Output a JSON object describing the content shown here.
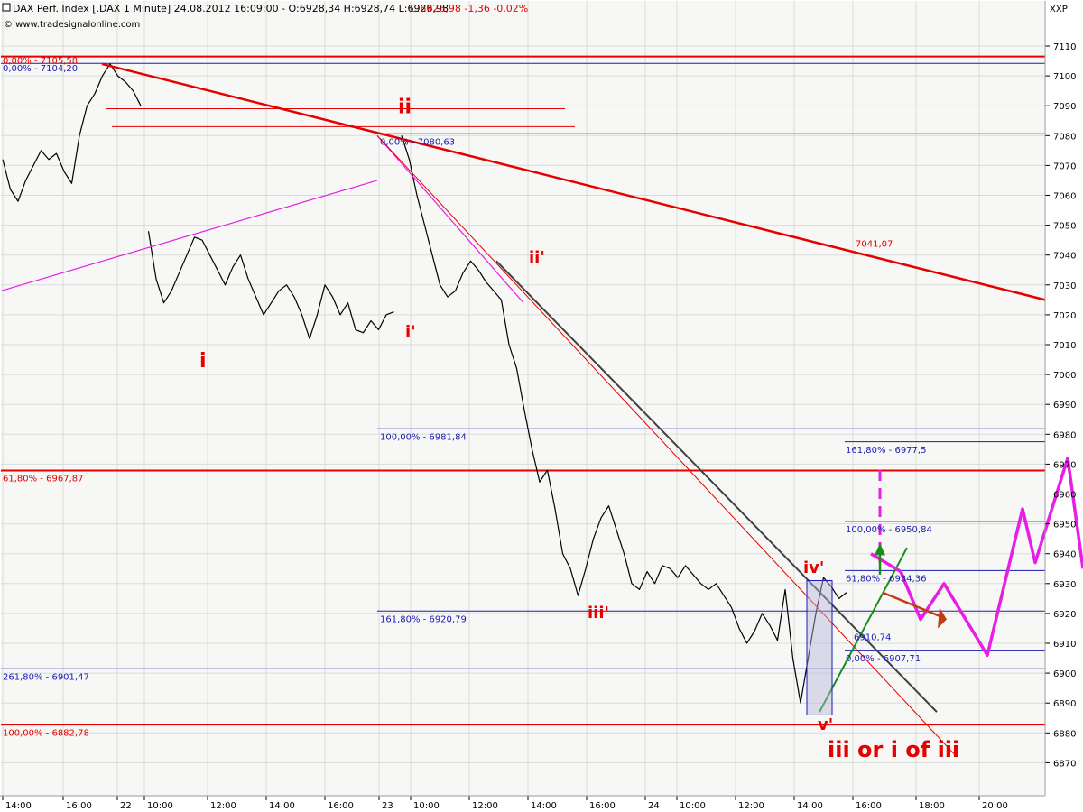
{
  "header": {
    "title": "DAX Perf. Index [.DAX  1 Minute] 24.08.2012 16:09:00 - O:6928,34 H:6928,74 L:6926,98",
    "close_text": "C:6926,98 -1,36 -0,02%",
    "source": "© www.tradesignalonline.com",
    "corner": "XXP"
  },
  "colors": {
    "background": "#f7f8f5",
    "grid": "#d8dcd8",
    "price": "#000000",
    "red": "#e60000",
    "blue": "#1a1ab4",
    "magenta": "#e61ee6",
    "grey": "#404040",
    "green": "#1a8c1a"
  },
  "chart_data": {
    "type": "line",
    "title": "DAX Perf. Index [.DAX  1 Minute]",
    "x_ticks": [
      "14:00",
      "16:00",
      "22",
      "10:00",
      "12:00",
      "14:00",
      "16:00",
      "23",
      "10:00",
      "12:00",
      "14:00",
      "16:00",
      "24",
      "10:00",
      "12:00",
      "14:00",
      "16:00",
      "18:00",
      "20:00"
    ],
    "y_ticks": [
      "7110",
      "7100",
      "7090",
      "7080",
      "7070",
      "7060",
      "7050",
      "7040",
      "7030",
      "7020",
      "7010",
      "7000",
      "6990",
      "6980",
      "6970",
      "6960",
      "6950",
      "6940",
      "6930",
      "6920",
      "6910",
      "6900",
      "6890",
      "6880",
      "6870"
    ],
    "ylim": [
      6862,
      7117
    ],
    "grid": true,
    "series": [
      {
        "segment": "22 Aug",
        "points": [
          [
            0,
            7072
          ],
          [
            1,
            7062
          ],
          [
            2,
            7058
          ],
          [
            3,
            7065
          ],
          [
            4,
            7070
          ],
          [
            5,
            7075
          ],
          [
            6,
            7072
          ],
          [
            7,
            7074
          ],
          [
            8,
            7068
          ],
          [
            9,
            7064
          ],
          [
            10,
            7080
          ],
          [
            11,
            7090
          ],
          [
            12,
            7094
          ],
          [
            13,
            7100
          ],
          [
            14,
            7104
          ],
          [
            15,
            7100
          ],
          [
            16,
            7098
          ],
          [
            17,
            7095
          ],
          [
            18,
            7090
          ]
        ]
      },
      {
        "segment": "23 Aug",
        "points": [
          [
            19,
            7048
          ],
          [
            20,
            7032
          ],
          [
            21,
            7024
          ],
          [
            22,
            7028
          ],
          [
            23,
            7034
          ],
          [
            24,
            7040
          ],
          [
            25,
            7046
          ],
          [
            26,
            7045
          ],
          [
            27,
            7040
          ],
          [
            28,
            7035
          ],
          [
            29,
            7030
          ],
          [
            30,
            7036
          ],
          [
            31,
            7040
          ],
          [
            32,
            7032
          ],
          [
            33,
            7026
          ],
          [
            34,
            7020
          ],
          [
            35,
            7024
          ],
          [
            36,
            7028
          ],
          [
            37,
            7030
          ],
          [
            38,
            7026
          ],
          [
            39,
            7020
          ],
          [
            40,
            7012
          ],
          [
            41,
            7020
          ],
          [
            42,
            7030
          ],
          [
            43,
            7026
          ],
          [
            44,
            7020
          ],
          [
            45,
            7024
          ],
          [
            46,
            7015
          ],
          [
            47,
            7014
          ],
          [
            48,
            7018
          ],
          [
            49,
            7015
          ],
          [
            50,
            7020
          ],
          [
            51,
            7021
          ]
        ]
      },
      {
        "segment": "24 Aug",
        "points": [
          [
            52,
            7080
          ],
          [
            53,
            7072
          ],
          [
            54,
            7060
          ],
          [
            55,
            7050
          ],
          [
            56,
            7040
          ],
          [
            57,
            7030
          ],
          [
            58,
            7026
          ],
          [
            59,
            7028
          ],
          [
            60,
            7034
          ],
          [
            61,
            7038
          ],
          [
            62,
            7035
          ],
          [
            63,
            7031
          ],
          [
            64,
            7028
          ],
          [
            65,
            7025
          ],
          [
            66,
            7010
          ],
          [
            67,
            7002
          ],
          [
            68,
            6988
          ],
          [
            69,
            6975
          ],
          [
            70,
            6964
          ],
          [
            71,
            6968
          ],
          [
            72,
            6955
          ],
          [
            73,
            6940
          ],
          [
            74,
            6935
          ],
          [
            75,
            6926
          ],
          [
            76,
            6935
          ],
          [
            77,
            6945
          ],
          [
            78,
            6952
          ],
          [
            79,
            6956
          ],
          [
            80,
            6948
          ],
          [
            81,
            6940
          ],
          [
            82,
            6930
          ],
          [
            83,
            6928
          ],
          [
            84,
            6934
          ],
          [
            85,
            6930
          ],
          [
            86,
            6936
          ],
          [
            87,
            6935
          ],
          [
            88,
            6932
          ],
          [
            89,
            6936
          ],
          [
            90,
            6933
          ],
          [
            91,
            6930
          ],
          [
            92,
            6928
          ],
          [
            93,
            6930
          ],
          [
            94,
            6926
          ],
          [
            95,
            6922
          ],
          [
            96,
            6915
          ],
          [
            97,
            6910
          ],
          [
            98,
            6914
          ],
          [
            99,
            6920
          ],
          [
            100,
            6916
          ],
          [
            101,
            6911
          ],
          [
            102,
            6928
          ],
          [
            103,
            6905
          ],
          [
            104,
            6890
          ],
          [
            105,
            6905
          ],
          [
            106,
            6920
          ],
          [
            107,
            6932
          ],
          [
            108,
            6929
          ],
          [
            109,
            6925
          ],
          [
            110,
            6927
          ]
        ]
      }
    ],
    "fib_labels": {
      "ab_top": "0,00% - 7105,58",
      "ab_top2": "0,00% - 7104,20",
      "top": "0,00% - 7080,63",
      "r100": "100,00% - 6981,84",
      "r161": "161,80% - 6920,79",
      "r261": "261,80% - 6901,47",
      "left618": "61,80% - 6967,87",
      "left100": "100,00% - 6882,78",
      "tl": "7041,07",
      "e161": "161,80% - 6977,5",
      "e100": "100,00% - 6950,84",
      "e618": "61,80% - 6934,36",
      "low": "6910,74",
      "e0": "0,00% - 6907,71"
    },
    "annotations": {
      "ii": "ii",
      "i": "i",
      "i_p": "i'",
      "ii_p": "ii'",
      "iii_p": "iii'",
      "iv_p": "iv'",
      "v_p": "v'",
      "bottom": "iii or i of iii"
    }
  }
}
